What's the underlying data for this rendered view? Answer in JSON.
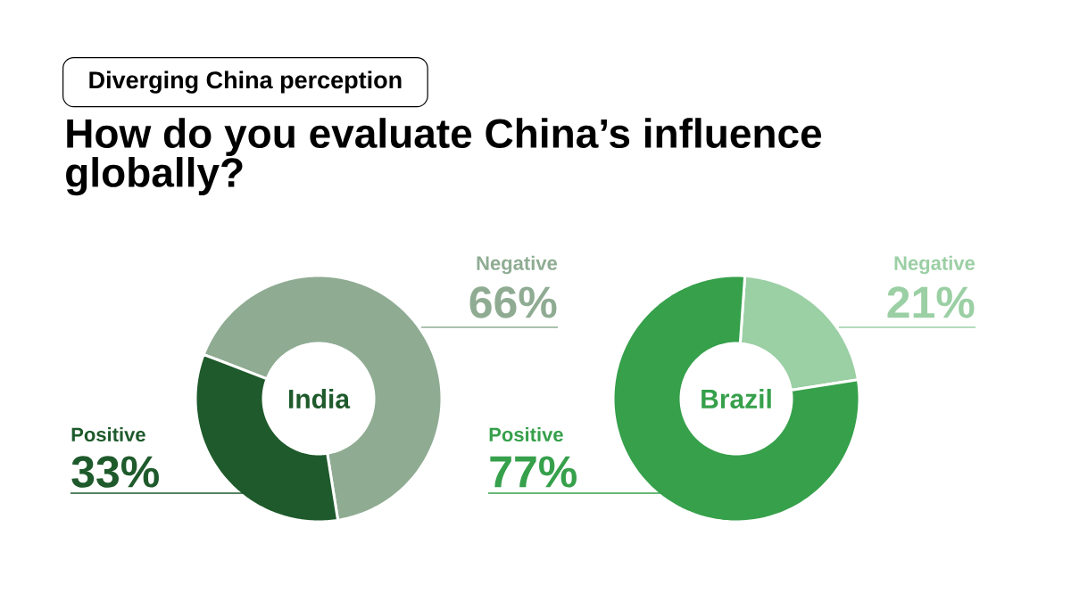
{
  "chart_data": [
    {
      "type": "donut",
      "title": "India",
      "annotations": [
        "Diverging China perception",
        "How do you evaluate China’s influence globally?"
      ],
      "categories": [
        "Negative",
        "Positive"
      ],
      "values": [
        66,
        33
      ],
      "value_labels": [
        "66%",
        "33%"
      ],
      "colors": [
        "#8fac93",
        "#1e5a2b"
      ]
    },
    {
      "type": "donut",
      "title": "Brazil",
      "categories": [
        "Negative",
        "Positive"
      ],
      "values": [
        21,
        77
      ],
      "value_labels": [
        "21%",
        "77%"
      ],
      "colors": [
        "#9bcfa4",
        "#36a04b"
      ]
    }
  ]
}
